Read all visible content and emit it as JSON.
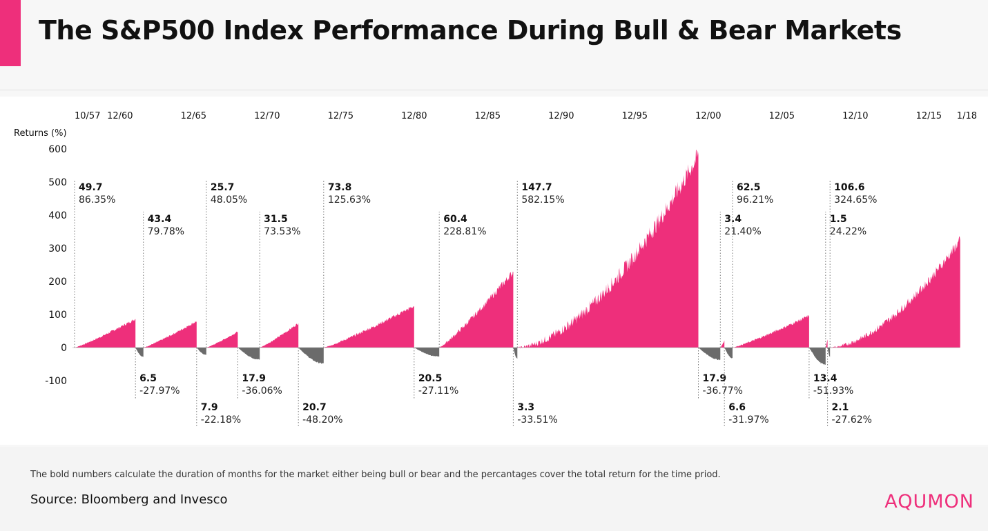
{
  "title": "The S&P500 Index Performance During Bull & Bear Markets",
  "footnote": "The bold numbers calculate the duration of months for the market either being bull or bear and the percantages cover the total return for the time priod.",
  "source": "Source: Bloomberg and Invesco",
  "logo": "AQUMON",
  "colors": {
    "accent": "#ee2f7b",
    "bull": "#ee2f7b",
    "bear": "#6b6b6b",
    "text": "#111111"
  },
  "chart_data": {
    "type": "area",
    "title": "The S&P500 Index Performance During Bull & Bear Markets",
    "ylabel": "Returns (%)",
    "ylim": [
      -100,
      600
    ],
    "yticks": [
      600,
      500,
      400,
      300,
      200,
      100,
      0,
      -100
    ],
    "x_tick_labels": [
      "10/57",
      "12/60",
      "12/65",
      "12/70",
      "12/75",
      "12/80",
      "12/85",
      "12/90",
      "12/95",
      "12/00",
      "12/05",
      "12/10",
      "12/15",
      "1/18"
    ],
    "x_tick_years": [
      1957.83,
      1960.92,
      1965.92,
      1970.92,
      1975.92,
      1980.92,
      1985.92,
      1990.92,
      1995.92,
      2000.92,
      2005.92,
      2010.92,
      2015.92,
      2018.0
    ],
    "grid": false,
    "series": [
      {
        "type": "bull",
        "start": 1957.83,
        "months": "49.7",
        "return": "86.35%",
        "end_value": 86.35
      },
      {
        "type": "bear",
        "start": 1961.97,
        "months": "6.5",
        "return": "-27.97%",
        "end_value": -27.97
      },
      {
        "type": "bull",
        "start": 1962.51,
        "months": "43.4",
        "return": "79.78%",
        "end_value": 79.78
      },
      {
        "type": "bear",
        "start": 1966.13,
        "months": "7.9",
        "return": "-22.18%",
        "end_value": -22.18
      },
      {
        "type": "bull",
        "start": 1966.79,
        "months": "25.7",
        "return": "48.05%",
        "end_value": 48.05
      },
      {
        "type": "bear",
        "start": 1968.93,
        "months": "17.9",
        "return": "-36.06%",
        "end_value": -36.06
      },
      {
        "type": "bull",
        "start": 1970.42,
        "months": "31.5",
        "return": "73.53%",
        "end_value": 73.53
      },
      {
        "type": "bear",
        "start": 1973.05,
        "months": "20.7",
        "return": "-48.20%",
        "end_value": -48.2
      },
      {
        "type": "bull",
        "start": 1974.77,
        "months": "73.8",
        "return": "125.63%",
        "end_value": 125.63
      },
      {
        "type": "bear",
        "start": 1980.92,
        "months": "20.5",
        "return": "-27.11%",
        "end_value": -27.11
      },
      {
        "type": "bull",
        "start": 1982.63,
        "months": "60.4",
        "return": "228.81%",
        "end_value": 228.81
      },
      {
        "type": "bear",
        "start": 1987.66,
        "months": "3.3",
        "return": "-33.51%",
        "end_value": -33.51
      },
      {
        "type": "bull",
        "start": 1987.94,
        "months": "147.7",
        "return": "582.15%",
        "end_value": 582.15
      },
      {
        "type": "bear",
        "start": 2000.25,
        "months": "17.9",
        "return": "-36.77%",
        "end_value": -36.77
      },
      {
        "type": "bull",
        "start": 2001.74,
        "months": "3.4",
        "return": "21.40%",
        "end_value": 21.4
      },
      {
        "type": "bear",
        "start": 2002.02,
        "months": "6.6",
        "return": "-31.97%",
        "end_value": -31.97
      },
      {
        "type": "bull",
        "start": 2002.57,
        "months": "62.5",
        "return": "96.21%",
        "end_value": 96.21
      },
      {
        "type": "bear",
        "start": 2007.78,
        "months": "13.4",
        "return": "-51.93%",
        "end_value": -51.93
      },
      {
        "type": "bull",
        "start": 2008.9,
        "months": "1.5",
        "return": "24.22%",
        "end_value": 24.22
      },
      {
        "type": "bear",
        "start": 2009.03,
        "months": "2.1",
        "return": "-27.62%",
        "end_value": -27.62
      },
      {
        "type": "bull",
        "start": 2009.2,
        "months": "106.6",
        "return": "324.65%",
        "end_value": 324.65
      }
    ]
  }
}
